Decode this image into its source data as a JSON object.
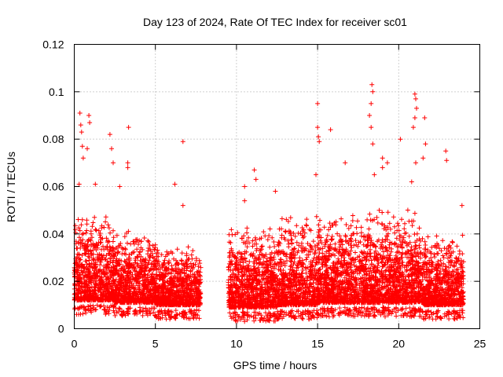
{
  "chart_data": {
    "type": "scatter",
    "title": "Day 123 of 2024, Rate Of TEC Index for receiver sc01",
    "xlabel": "GPS time / hours",
    "ylabel": "ROTI / TECUs",
    "xlim": [
      0,
      25
    ],
    "ylim": [
      0,
      0.12
    ],
    "x_ticks": [
      0,
      5,
      10,
      15,
      20,
      25
    ],
    "x_tick_labels": [
      "0",
      "5",
      "10",
      "15",
      "20",
      "25"
    ],
    "y_ticks": [
      0,
      0.02,
      0.04,
      0.06,
      0.08,
      0.1,
      0.12
    ],
    "y_tick_labels": [
      "0",
      "0.02",
      "0.04",
      "0.06",
      "0.08",
      "0.1",
      "0.12"
    ],
    "grid": true,
    "marker": "plus",
    "marker_color": "#ff0000",
    "data_gap_hours": [
      7.8,
      9.5
    ],
    "segments": [
      {
        "x_start": 0.0,
        "x_end": 7.8
      },
      {
        "x_start": 9.5,
        "x_end": 24.0
      }
    ],
    "series": [
      {
        "outliers": [
          {
            "x": 0.35,
            "y": 0.091
          },
          {
            "x": 0.4,
            "y": 0.086
          },
          {
            "x": 0.45,
            "y": 0.083
          },
          {
            "x": 0.9,
            "y": 0.09
          },
          {
            "x": 0.95,
            "y": 0.087
          },
          {
            "x": 0.5,
            "y": 0.077
          },
          {
            "x": 0.55,
            "y": 0.072
          },
          {
            "x": 0.8,
            "y": 0.076
          },
          {
            "x": 2.2,
            "y": 0.082
          },
          {
            "x": 2.3,
            "y": 0.076
          },
          {
            "x": 3.35,
            "y": 0.085
          },
          {
            "x": 3.3,
            "y": 0.07
          },
          {
            "x": 2.4,
            "y": 0.07
          },
          {
            "x": 3.3,
            "y": 0.068
          },
          {
            "x": 6.7,
            "y": 0.079
          },
          {
            "x": 6.2,
            "y": 0.061
          },
          {
            "x": 6.7,
            "y": 0.052
          },
          {
            "x": 10.5,
            "y": 0.06
          },
          {
            "x": 10.5,
            "y": 0.054
          },
          {
            "x": 11.1,
            "y": 0.067
          },
          {
            "x": 11.2,
            "y": 0.063
          },
          {
            "x": 12.4,
            "y": 0.058
          },
          {
            "x": 14.9,
            "y": 0.065
          },
          {
            "x": 15.0,
            "y": 0.095
          },
          {
            "x": 15.0,
            "y": 0.085
          },
          {
            "x": 15.05,
            "y": 0.081
          },
          {
            "x": 15.1,
            "y": 0.079
          },
          {
            "x": 15.8,
            "y": 0.084
          },
          {
            "x": 16.7,
            "y": 0.07
          },
          {
            "x": 18.3,
            "y": 0.095
          },
          {
            "x": 18.35,
            "y": 0.103
          },
          {
            "x": 18.4,
            "y": 0.1
          },
          {
            "x": 18.2,
            "y": 0.09
          },
          {
            "x": 18.3,
            "y": 0.085
          },
          {
            "x": 18.4,
            "y": 0.078
          },
          {
            "x": 18.5,
            "y": 0.065
          },
          {
            "x": 19.0,
            "y": 0.068
          },
          {
            "x": 19.3,
            "y": 0.07
          },
          {
            "x": 20.1,
            "y": 0.08
          },
          {
            "x": 20.9,
            "y": 0.085
          },
          {
            "x": 21.0,
            "y": 0.099
          },
          {
            "x": 21.05,
            "y": 0.097
          },
          {
            "x": 21.1,
            "y": 0.093
          },
          {
            "x": 21.0,
            "y": 0.089
          },
          {
            "x": 21.05,
            "y": 0.07
          },
          {
            "x": 21.6,
            "y": 0.089
          },
          {
            "x": 21.65,
            "y": 0.078
          },
          {
            "x": 21.5,
            "y": 0.072
          },
          {
            "x": 22.9,
            "y": 0.075
          },
          {
            "x": 22.95,
            "y": 0.071
          },
          {
            "x": 23.9,
            "y": 0.052
          },
          {
            "x": 20.8,
            "y": 0.062
          },
          {
            "x": 19.0,
            "y": 0.072
          },
          {
            "x": 0.3,
            "y": 0.061
          },
          {
            "x": 1.3,
            "y": 0.061
          },
          {
            "x": 2.8,
            "y": 0.06
          }
        ],
        "bands": [
          {
            "x_start": 0.0,
            "x_end": 2.5,
            "y_min": 0.006,
            "y_max": 0.05
          },
          {
            "x_start": 2.5,
            "x_end": 5.0,
            "y_min": 0.005,
            "y_max": 0.042
          },
          {
            "x_start": 5.0,
            "x_end": 7.8,
            "y_min": 0.004,
            "y_max": 0.036
          },
          {
            "x_start": 9.5,
            "x_end": 12.5,
            "y_min": 0.003,
            "y_max": 0.045
          },
          {
            "x_start": 12.5,
            "x_end": 15.0,
            "y_min": 0.004,
            "y_max": 0.048
          },
          {
            "x_start": 15.0,
            "x_end": 18.0,
            "y_min": 0.005,
            "y_max": 0.05
          },
          {
            "x_start": 18.0,
            "x_end": 21.5,
            "y_min": 0.005,
            "y_max": 0.052
          },
          {
            "x_start": 21.5,
            "x_end": 24.0,
            "y_min": 0.004,
            "y_max": 0.04
          }
        ]
      }
    ]
  }
}
